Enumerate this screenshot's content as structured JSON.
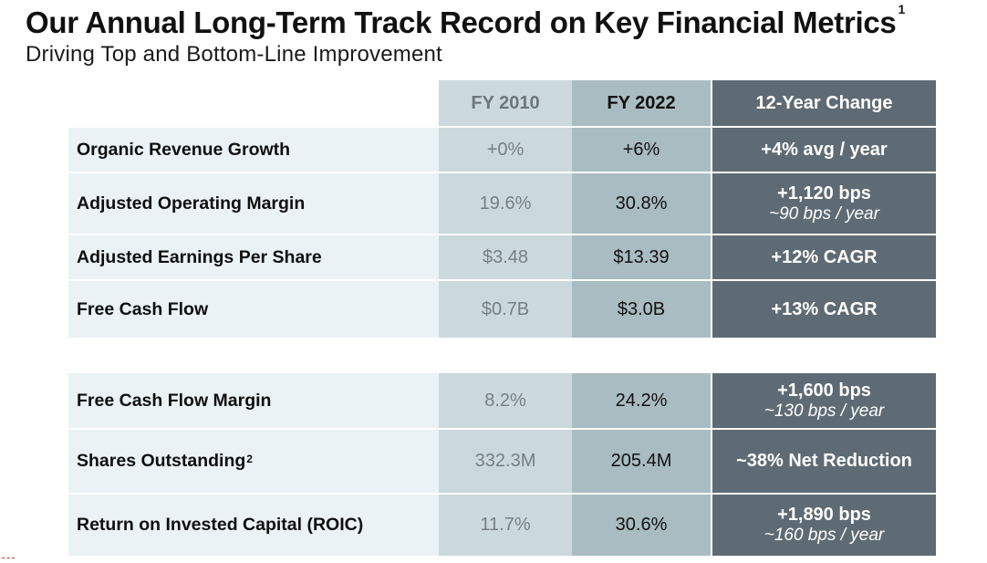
{
  "title": "Our Annual Long-Term Track Record on Key Financial Metrics",
  "title_footnote": "1",
  "subtitle": "Driving Top and Bottom-Line Improvement",
  "headers": {
    "col1": "FY 2010",
    "col2": "FY 2022",
    "col3": "12-Year Change"
  },
  "group1": [
    {
      "label": "Organic Revenue Growth",
      "fy2010": "+0%",
      "fy2022": "+6%",
      "change": "+4% avg / year",
      "change_sub": ""
    },
    {
      "label": "Adjusted Operating Margin",
      "fy2010": "19.6%",
      "fy2022": "30.8%",
      "change": "+1,120 bps",
      "change_sub": "~90 bps / year"
    },
    {
      "label": "Adjusted Earnings Per Share",
      "fy2010": "$3.48",
      "fy2022": "$13.39",
      "change": "+12% CAGR",
      "change_sub": ""
    },
    {
      "label": "Free Cash Flow",
      "fy2010": "$0.7B",
      "fy2022": "$3.0B",
      "change": "+13% CAGR",
      "change_sub": ""
    }
  ],
  "group2": [
    {
      "label": "Free Cash Flow Margin",
      "footnote": "",
      "fy2010": "8.2%",
      "fy2022": "24.2%",
      "change": "+1,600 bps",
      "change_sub": "~130 bps / year"
    },
    {
      "label": "Shares Outstanding",
      "footnote": "2",
      "fy2010": "332.3M",
      "fy2022": "205.4M",
      "change": "~38% Net Reduction",
      "change_sub": ""
    },
    {
      "label": "Return on Invested Capital (ROIC)",
      "footnote": "",
      "fy2010": "11.7%",
      "fy2022": "30.6%",
      "change": "+1,890 bps",
      "change_sub": "~160 bps / year"
    }
  ],
  "colors": {
    "label_bg": "#ebf2f5",
    "fy2010_bg": "#cbd9dd",
    "fy2022_bg": "#a9bcc1",
    "change_bg": "#5e6b74"
  }
}
